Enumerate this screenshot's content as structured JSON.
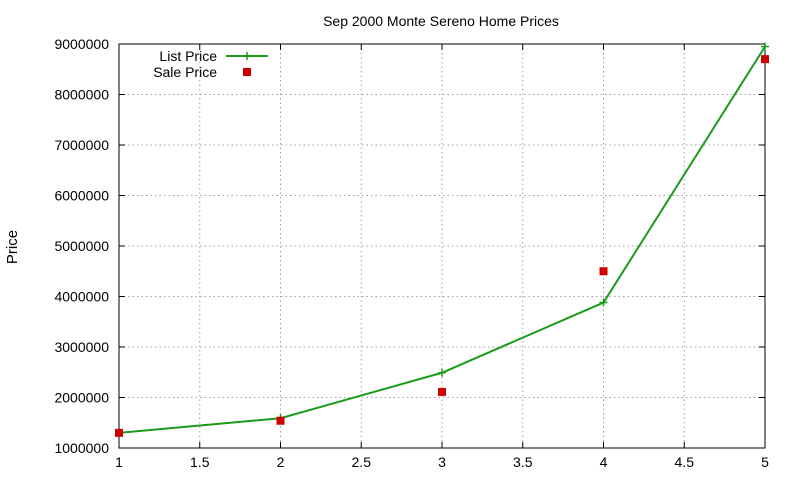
{
  "chart_data": {
    "type": "line",
    "title": "Sep 2000 Monte Sereno Home Prices",
    "xlabel": "",
    "ylabel": "Price",
    "xlim": [
      1,
      5
    ],
    "ylim": [
      1000000,
      9000000
    ],
    "x_ticks": [
      "1",
      "1.5",
      "2",
      "2.5",
      "3",
      "3.5",
      "4",
      "4.5",
      "5"
    ],
    "y_ticks": [
      "1000000",
      "2000000",
      "3000000",
      "4000000",
      "5000000",
      "6000000",
      "7000000",
      "8000000",
      "9000000"
    ],
    "grid": true,
    "legend_position": "top-left",
    "series": [
      {
        "name": "List Price",
        "style": "line+cross",
        "color": "#1a9c1a",
        "points": [
          [
            1,
            1300000
          ],
          [
            2,
            1590000
          ],
          [
            3,
            2490000
          ],
          [
            4,
            3880000
          ],
          [
            5,
            8950000
          ]
        ]
      },
      {
        "name": "Sale Price",
        "style": "square",
        "color": "#cc0000",
        "points": [
          [
            1,
            1300000
          ],
          [
            2,
            1540000
          ],
          [
            3,
            2110000
          ],
          [
            4,
            4500000
          ],
          [
            5,
            8700000
          ]
        ]
      }
    ]
  }
}
